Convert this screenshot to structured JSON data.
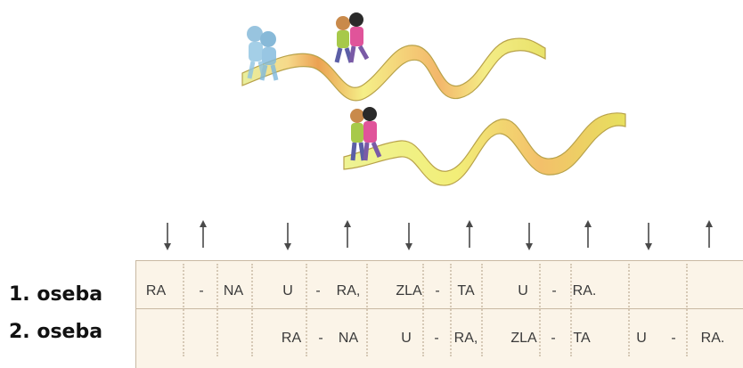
{
  "arrows": [
    "down",
    "up",
    "down",
    "up",
    "down",
    "up",
    "down",
    "up",
    "down",
    "up"
  ],
  "rows": [
    {
      "label": "1. oseba",
      "cells": [
        "RA",
        "-",
        "NA",
        "U",
        "-",
        "RA,",
        "ZLA",
        "-",
        "TA",
        "U",
        "-",
        "RA."
      ]
    },
    {
      "label": "2. oseba",
      "cells": [
        "RA",
        "-",
        "NA",
        "U",
        "-",
        "RA,",
        "ZLA",
        "-",
        "TA",
        "U",
        "-",
        "RA."
      ]
    }
  ],
  "colors": {
    "path_yellow": "#f3ec84",
    "path_orange": "#eba152",
    "table_bg": "#fbf4e8",
    "table_border": "#c9b9a2",
    "arrow": "#4a4a4a"
  }
}
